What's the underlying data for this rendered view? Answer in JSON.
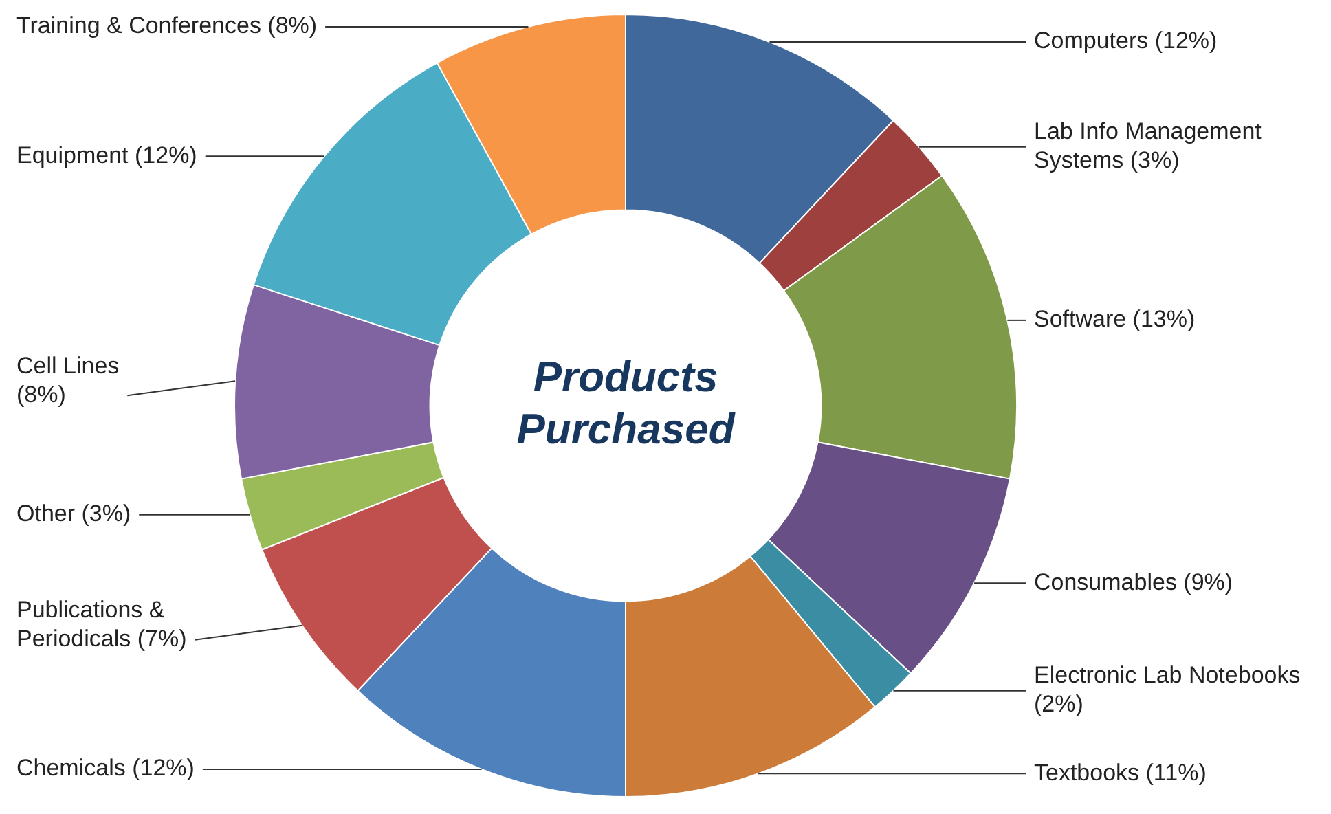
{
  "chart_data": {
    "type": "donut",
    "title": "Products Purchased",
    "categories": [
      "Computers (12%)",
      "Lab Info Management Systems (3%)",
      "Software (13%)",
      "Consumables (9%)",
      "Electronic Lab Notebooks (2%)",
      "Textbooks (11%)",
      "Chemicals (12%)",
      "Publications & Periodicals (7%)",
      "Other (3%)",
      "Cell Lines (8%)",
      "Equipment (12%)",
      "Training & Conferences (8%)"
    ],
    "values": [
      12,
      3,
      13,
      9,
      2,
      11,
      12,
      7,
      3,
      8,
      12,
      8
    ],
    "colors": [
      "#41689b",
      "#9e413e",
      "#7f9a48",
      "#684f86",
      "#3a8da3",
      "#cc7b38",
      "#4f81bd",
      "#c0504d",
      "#9bbb59",
      "#8064a2",
      "#4bacc6",
      "#f79646"
    ]
  }
}
